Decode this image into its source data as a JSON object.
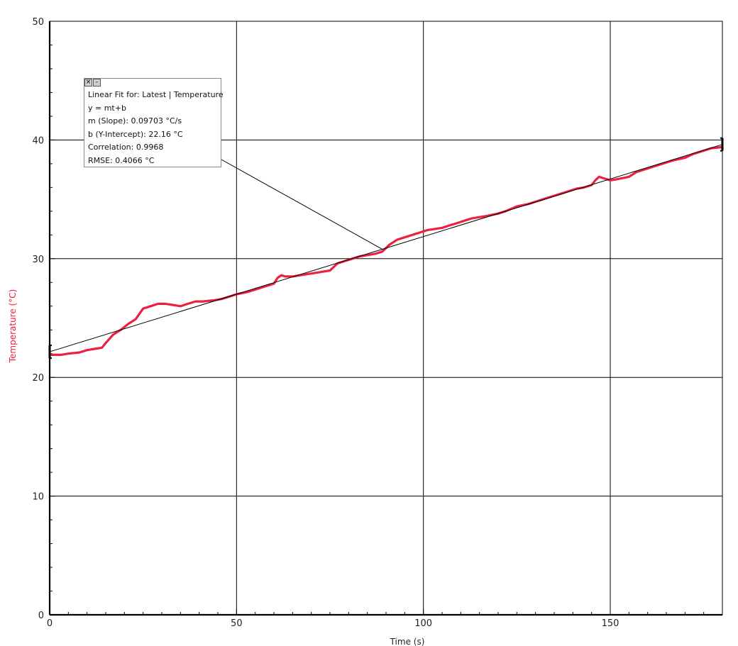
{
  "chart_data": {
    "type": "line",
    "xlabel": "Time (s)",
    "ylabel": "Temperature (°C)",
    "xlim": [
      0,
      180
    ],
    "ylim": [
      0,
      50
    ],
    "x_ticks": [
      "0",
      "50",
      "100",
      "150"
    ],
    "y_ticks": [
      "0",
      "10",
      "20",
      "30",
      "40",
      "50"
    ],
    "grid": true,
    "series": [
      {
        "color": "#ee2040",
        "x": [
          0,
          3,
          5,
          8,
          10,
          12,
          14,
          15,
          17,
          19,
          21,
          23,
          25,
          27,
          29,
          31,
          33,
          35,
          37,
          39,
          41,
          44,
          46,
          48,
          50,
          53,
          55,
          57,
          60,
          61,
          62,
          63,
          65,
          67,
          69,
          71,
          73,
          75,
          77,
          79,
          81,
          83,
          85,
          87,
          89,
          91,
          93,
          95,
          97,
          99,
          101,
          103,
          105,
          107,
          109,
          111,
          113,
          115,
          117,
          120,
          122,
          125,
          128,
          130,
          133,
          136,
          139,
          141,
          143,
          145,
          146,
          147,
          148,
          150,
          152,
          155,
          157,
          160,
          162,
          165,
          167,
          170,
          172,
          175,
          177,
          180
        ],
        "y": [
          21.9,
          21.9,
          22.0,
          22.1,
          22.3,
          22.4,
          22.5,
          22.9,
          23.6,
          24.0,
          24.5,
          24.9,
          25.8,
          26.0,
          26.2,
          26.2,
          26.1,
          26.0,
          26.2,
          26.4,
          26.4,
          26.5,
          26.6,
          26.8,
          27.0,
          27.2,
          27.4,
          27.6,
          27.9,
          28.4,
          28.6,
          28.5,
          28.5,
          28.6,
          28.7,
          28.8,
          28.9,
          29.0,
          29.6,
          29.8,
          30.0,
          30.2,
          30.3,
          30.4,
          30.6,
          31.2,
          31.6,
          31.8,
          32.0,
          32.2,
          32.4,
          32.5,
          32.6,
          32.8,
          33.0,
          33.2,
          33.4,
          33.5,
          33.6,
          33.8,
          34.0,
          34.4,
          34.6,
          34.8,
          35.1,
          35.4,
          35.7,
          35.9,
          36.0,
          36.2,
          36.6,
          36.9,
          36.8,
          36.6,
          36.7,
          36.9,
          37.3,
          37.6,
          37.8,
          38.1,
          38.3,
          38.5,
          38.8,
          39.1,
          39.3,
          39.4
        ]
      }
    ],
    "fit": {
      "slope": 0.09703,
      "intercept": 22.16,
      "color": "#000000",
      "callout_point": [
        89,
        30.8
      ]
    }
  },
  "fit_box": {
    "close_icon": "close-icon",
    "minimize_icon": "minimize-icon",
    "close_glyph": "×",
    "minimize_glyph": "-",
    "title": "Linear Fit for: Latest | Temperature",
    "equation": "y = mt+b",
    "slope": "m (Slope): 0.09703 °C/s",
    "intercept": "b (Y-Intercept): 22.16 °C",
    "correlation": "Correlation: 0.9968",
    "rmse": "RMSE: 0.4066 °C"
  }
}
